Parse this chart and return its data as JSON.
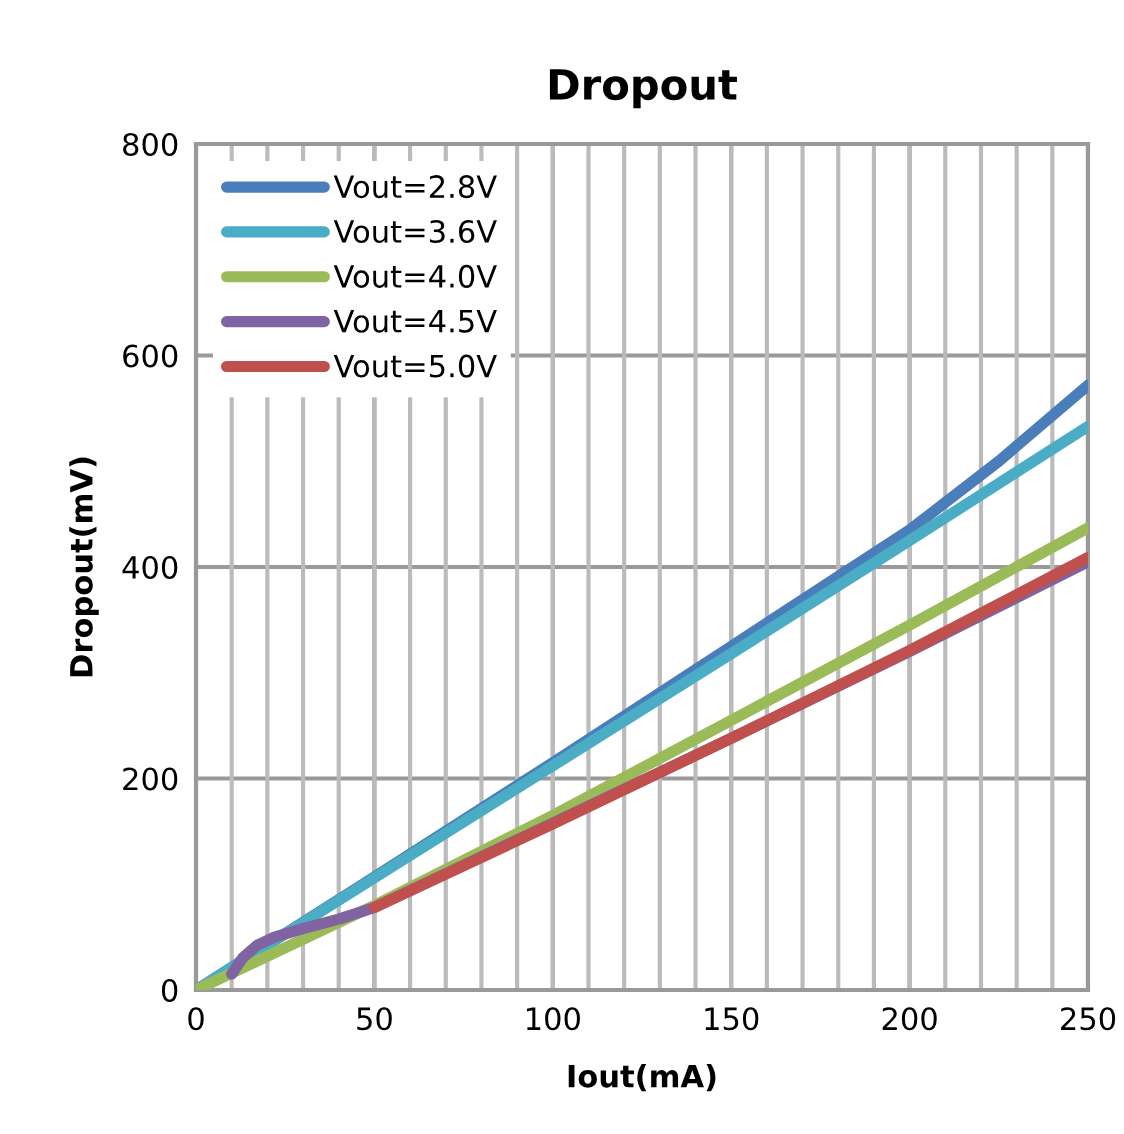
{
  "chart_data": {
    "type": "line",
    "title": "Dropout",
    "xlabel": "Iout(mA)",
    "ylabel": "Dropout(mV)",
    "xlim": [
      0,
      250
    ],
    "xticks": [
      0,
      50,
      100,
      150,
      200,
      250
    ],
    "ylim": [
      0,
      800
    ],
    "yticks": [
      0,
      200,
      400,
      600,
      800
    ],
    "grid": true,
    "legend": "top left",
    "marker": "none",
    "line_style": "solid",
    "series": [
      {
        "name": "Vout=2.8V",
        "color": "#4a7ebb",
        "x": [
          0,
          50,
          100,
          150,
          200,
          225,
          250
        ],
        "values": [
          0,
          107,
          215,
          325,
          435,
          500,
          572
        ]
      },
      {
        "name": "Vout=3.6V",
        "color": "#4bacc6",
        "x": [
          0,
          50,
          100,
          150,
          200,
          250
        ],
        "values": [
          0,
          106,
          212,
          318,
          425,
          533
        ]
      },
      {
        "name": "Vout=4.0V",
        "color": "#9bbb59",
        "x": [
          0,
          50,
          100,
          150,
          200,
          250
        ],
        "values": [
          0,
          80,
          165,
          255,
          345,
          437
        ]
      },
      {
        "name": "Vout=4.5V",
        "color": "#8064a2",
        "x": [
          10,
          13,
          17,
          22,
          30,
          40,
          50,
          100,
          150,
          200,
          250
        ],
        "values": [
          15,
          30,
          42,
          50,
          58,
          67,
          78,
          158,
          238,
          320,
          405
        ]
      },
      {
        "name": "Vout=5.0V",
        "color": "#c0504d",
        "x": [
          50,
          100,
          150,
          200,
          250
        ],
        "values": [
          78,
          157,
          238,
          321,
          409
        ]
      }
    ]
  }
}
